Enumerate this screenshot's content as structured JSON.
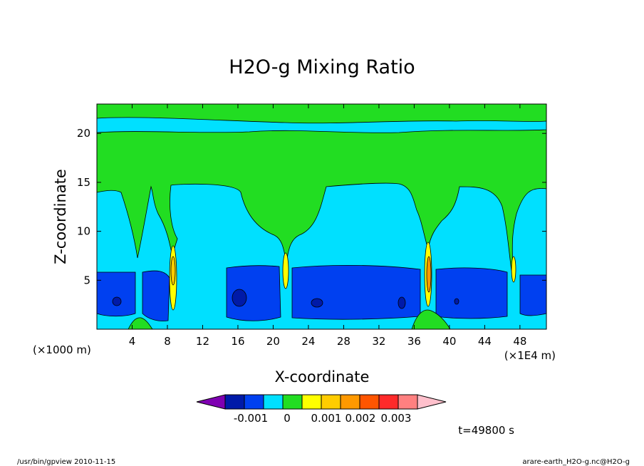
{
  "chart_data": {
    "type": "heatmap",
    "title": "H2O-g Mixing Ratio",
    "xlabel": "X-coordinate",
    "ylabel": "Z-coordinate",
    "x_unit_left": "(×1000 m)",
    "x_unit_right": "(×1E4 m)",
    "xlim": [
      0,
      51
    ],
    "ylim": [
      0,
      23
    ],
    "x_ticks": [
      4,
      8,
      12,
      16,
      20,
      24,
      28,
      32,
      36,
      40,
      44,
      48
    ],
    "y_ticks": [
      5,
      10,
      15,
      20
    ],
    "colorbar": {
      "colors": [
        "#7f00b2",
        "#001aa8",
        "#0040f0",
        "#00e0ff",
        "#22dd22",
        "#ffff00",
        "#ffcc00",
        "#ff9900",
        "#ff5500",
        "#ff2a2a",
        "#ff8080",
        "#ffc0cc"
      ],
      "labels": [
        "-0.001",
        "0",
        "0.001",
        "0.002",
        "0.003"
      ]
    },
    "bands": [
      {
        "name": "upper-green-layer",
        "z_range": [
          14,
          22.5
        ]
      },
      {
        "name": "mid-cyan-layer",
        "z_range": [
          6,
          15
        ]
      },
      {
        "name": "lower-blue-layer",
        "z_range": [
          1,
          6
        ]
      }
    ],
    "annotation": "t=49800 s"
  },
  "footer": {
    "left": "/usr/bin/gpview  2010-11-15",
    "right": "arare-earth_H2O-g.nc@H2O-g"
  }
}
